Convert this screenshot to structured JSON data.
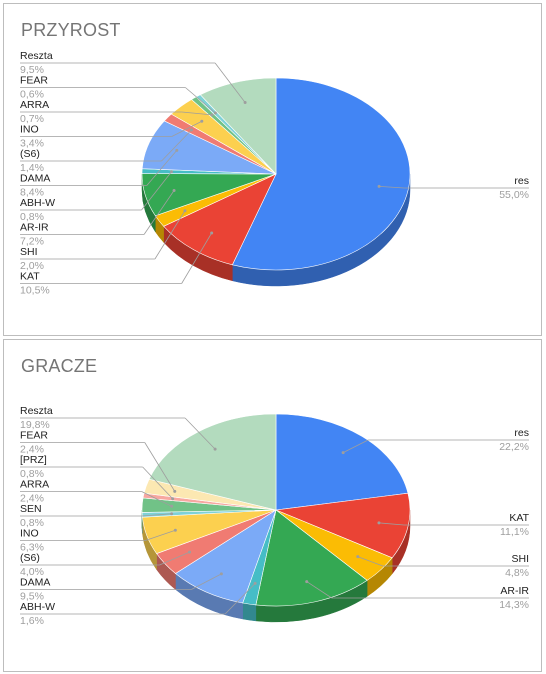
{
  "chart_data": [
    {
      "type": "pie",
      "title": "PRZYROST",
      "slices": [
        {
          "label": "res",
          "value_text": "55,0%",
          "value": 55.0,
          "color": "#4285f4"
        },
        {
          "label": "KAT",
          "value_text": "10,5%",
          "value": 10.5,
          "color": "#ea4335"
        },
        {
          "label": "SHI",
          "value_text": "2,0%",
          "value": 2.0,
          "color": "#fbbc04"
        },
        {
          "label": "AR-IR",
          "value_text": "7,2%",
          "value": 7.2,
          "color": "#34a853"
        },
        {
          "label": "ABH-W",
          "value_text": "0,8%",
          "value": 0.8,
          "color": "#46bdc6"
        },
        {
          "label": "DAMA",
          "value_text": "8,4%",
          "value": 8.4,
          "color": "#7baaf7"
        },
        {
          "label": "(S6)",
          "value_text": "1,4%",
          "value": 1.4,
          "color": "#f07b72"
        },
        {
          "label": "INO",
          "value_text": "3,4%",
          "value": 3.4,
          "color": "#fcd04f"
        },
        {
          "label": "ARRA",
          "value_text": "0,7%",
          "value": 0.7,
          "color": "#71c287"
        },
        {
          "label": "FEAR",
          "value_text": "0,6%",
          "value": 0.6,
          "color": "#7ed1d7"
        },
        {
          "label": "Reszta",
          "value_text": "9,5%",
          "value": 9.5,
          "color": "#b3dbbe"
        }
      ]
    },
    {
      "type": "pie",
      "title": "GRACZE",
      "slices": [
        {
          "label": "res",
          "value_text": "22,2%",
          "value": 22.2,
          "color": "#4285f4"
        },
        {
          "label": "KAT",
          "value_text": "11,1%",
          "value": 11.1,
          "color": "#ea4335"
        },
        {
          "label": "SHI",
          "value_text": "4,8%",
          "value": 4.8,
          "color": "#fbbc04"
        },
        {
          "label": "AR-IR",
          "value_text": "14,3%",
          "value": 14.3,
          "color": "#34a853"
        },
        {
          "label": "ABH-W",
          "value_text": "1,6%",
          "value": 1.6,
          "color": "#46bdc6"
        },
        {
          "label": "DAMA",
          "value_text": "9,5%",
          "value": 9.5,
          "color": "#7baaf7"
        },
        {
          "label": "(S6)",
          "value_text": "4,0%",
          "value": 4.0,
          "color": "#f07b72"
        },
        {
          "label": "INO",
          "value_text": "6,3%",
          "value": 6.3,
          "color": "#fcd04f"
        },
        {
          "label": "SEN",
          "value_text": "0,8%",
          "value": 0.8,
          "color": "#7ed1d7"
        },
        {
          "label": "ARRA",
          "value_text": "2,4%",
          "value": 2.4,
          "color": "#71c287"
        },
        {
          "label": "[PRZ]",
          "value_text": "0,8%",
          "value": 0.8,
          "color": "#f7a7a0"
        },
        {
          "label": "FEAR",
          "value_text": "2,4%",
          "value": 2.4,
          "color": "#fce8b2"
        },
        {
          "label": "Reszta",
          "value_text": "19,8%",
          "value": 19.8,
          "color": "#b3dbbe"
        }
      ]
    }
  ]
}
